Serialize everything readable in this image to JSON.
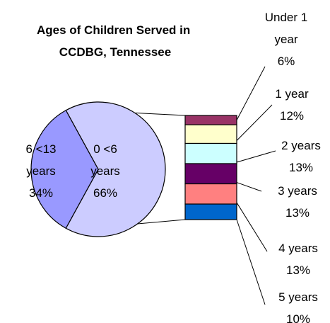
{
  "chart_data": {
    "type": "bar-of-pie",
    "title_lines": [
      "Ages of Children Served in",
      "CCDBG, Tennessee"
    ],
    "pie": [
      {
        "label_lines": [
          "0 <6",
          "years",
          "66%"
        ],
        "value": 66,
        "color": "#ccccff"
      },
      {
        "label_lines": [
          "6 <13",
          "years",
          "34%"
        ],
        "value": 34,
        "color": "#9999ff"
      }
    ],
    "breakdown": [
      {
        "label_lines": [
          "Under 1",
          "year",
          "6%"
        ],
        "value": 6,
        "color": "#993366"
      },
      {
        "label_lines": [
          "1 year",
          "12%"
        ],
        "value": 12,
        "color": "#ffffcc"
      },
      {
        "label_lines": [
          "2 years",
          "13%"
        ],
        "value": 13,
        "color": "#ccffff"
      },
      {
        "label_lines": [
          "3 years",
          "13%"
        ],
        "value": 13,
        "color": "#660066"
      },
      {
        "label_lines": [
          "4 years",
          "13%"
        ],
        "value": 13,
        "color": "#ff8080"
      },
      {
        "label_lines": [
          "5 years",
          "10%"
        ],
        "value": 10,
        "color": "#0066cc"
      }
    ]
  }
}
